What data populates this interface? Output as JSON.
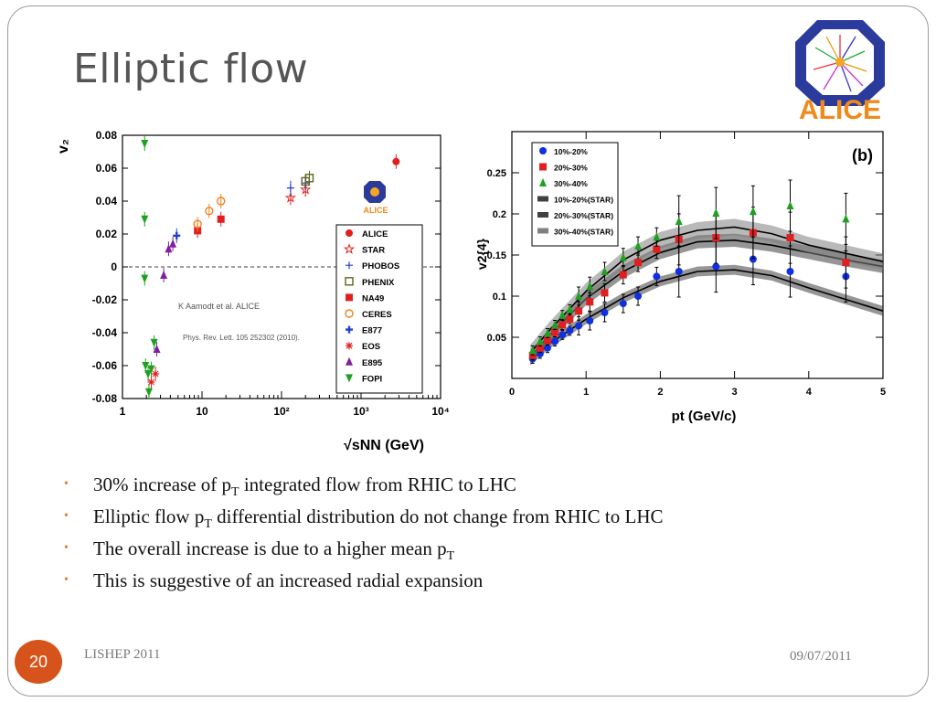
{
  "slide": {
    "title": "Elliptic flow",
    "page_number": "20",
    "footer_left": "LISHEP 2011",
    "footer_right": "09/07/2011",
    "logo_text": "ALICE",
    "bullets": [
      {
        "parts": [
          "30% increase of  p",
          "T",
          " integrated flow from RHIC to LHC"
        ]
      },
      {
        "parts": [
          "Elliptic flow p",
          "T",
          " differential distribution do not change from RHIC to LHC"
        ]
      },
      {
        "parts": [
          "The overall increase is due to  a higher mean p",
          "T",
          ""
        ]
      },
      {
        "parts": [
          "This is suggestive of an increased  radial expansion",
          "",
          ""
        ]
      }
    ],
    "colors": {
      "accent": "#d6541b",
      "bullet": "#e07a2e",
      "title": "#555555"
    }
  },
  "chart_data": [
    {
      "type": "scatter",
      "xscale": "log",
      "xlim": [
        1,
        10000
      ],
      "ylim": [
        -0.08,
        0.08
      ],
      "xticks": [
        "1",
        "10",
        "10²",
        "10³",
        "10⁴"
      ],
      "yticks": [
        "0.08",
        "0.06",
        "0.04",
        "0.02",
        "0",
        "-0.02",
        "-0.04",
        "-0.06",
        "-0.08"
      ],
      "ylabel": "v₂",
      "xlabel": "√sNN (GeV)",
      "legend_position": "right",
      "annotation_1": "K Aamodt et al. ALICE",
      "annotation_2": "Phys. Rev. Lett. 105 252302 (2010).",
      "logo_text": "ALICE",
      "series": [
        {
          "name": "ALICE",
          "color": "#e02020",
          "marker": "circle",
          "points": [
            [
              2760,
              0.064
            ]
          ]
        },
        {
          "name": "STAR",
          "color": "#e02020",
          "marker": "star",
          "points": [
            [
              130,
              0.042
            ],
            [
              200,
              0.047
            ]
          ]
        },
        {
          "name": "PHOBOS",
          "color": "#2040d0",
          "marker": "cross-open",
          "points": [
            [
              130,
              0.048
            ],
            [
              200,
              0.051
            ]
          ]
        },
        {
          "name": "PHENIX",
          "color": "#606020",
          "marker": "square-open",
          "points": [
            [
              200,
              0.052
            ],
            [
              224,
              0.054
            ]
          ]
        },
        {
          "name": "NA49",
          "color": "#e02020",
          "marker": "square",
          "points": [
            [
              8.8,
              0.022
            ],
            [
              17.3,
              0.029
            ]
          ]
        },
        {
          "name": "CERES",
          "color": "#f08020",
          "marker": "circle-open",
          "points": [
            [
              8.8,
              0.026
            ],
            [
              12.3,
              0.034
            ],
            [
              17.3,
              0.04
            ]
          ]
        },
        {
          "name": "E877",
          "color": "#2040d0",
          "marker": "cross",
          "points": [
            [
              4.8,
              0.019
            ]
          ]
        },
        {
          "name": "EOS",
          "color": "#e02020",
          "marker": "asterisk",
          "points": [
            [
              2.3,
              -0.07
            ],
            [
              2.6,
              -0.065
            ]
          ]
        },
        {
          "name": "E895",
          "color": "#8020a0",
          "marker": "triangle",
          "points": [
            [
              3.3,
              -0.005
            ],
            [
              3.8,
              0.011
            ],
            [
              4.3,
              0.014
            ],
            [
              2.7,
              -0.05
            ]
          ]
        },
        {
          "name": "FOPI",
          "color": "#20a020",
          "marker": "triangle-down",
          "points": [
            [
              1.9,
              0.075
            ],
            [
              1.9,
              0.029
            ],
            [
              1.9,
              -0.007
            ],
            [
              1.95,
              -0.06
            ],
            [
              2.1,
              -0.065
            ],
            [
              2.15,
              -0.076
            ],
            [
              2.3,
              -0.062
            ],
            [
              2.5,
              -0.046
            ]
          ]
        }
      ]
    },
    {
      "type": "scatter",
      "xlim": [
        0,
        5
      ],
      "ylim": [
        0,
        0.3
      ],
      "xticks": [
        "0",
        "1",
        "2",
        "3",
        "4",
        "5"
      ],
      "yticks": [
        "0.05",
        "0.1",
        "0.15",
        "0.2",
        "0.25"
      ],
      "ylabel": "v2{4}",
      "xlabel": "pt (GeV/c)",
      "panel_label": "(b)",
      "legend_position": "top-left",
      "series": [
        {
          "name": "10%-20%",
          "color": "#1030e0",
          "marker": "circle",
          "x": [
            0.28,
            0.38,
            0.48,
            0.58,
            0.68,
            0.78,
            0.9,
            1.05,
            1.25,
            1.5,
            1.7,
            1.95,
            2.25,
            2.75,
            3.25,
            3.75,
            4.5
          ],
          "y": [
            0.024,
            0.03,
            0.037,
            0.045,
            0.053,
            0.058,
            0.064,
            0.07,
            0.08,
            0.091,
            0.1,
            0.124,
            0.13,
            0.136,
            0.145,
            0.13,
            0.124
          ]
        },
        {
          "name": "20%-30%",
          "color": "#e02020",
          "marker": "square",
          "x": [
            0.28,
            0.38,
            0.48,
            0.58,
            0.68,
            0.78,
            0.9,
            1.05,
            1.25,
            1.5,
            1.7,
            1.95,
            2.25,
            2.75,
            3.25,
            3.75,
            4.5
          ],
          "y": [
            0.028,
            0.037,
            0.046,
            0.056,
            0.065,
            0.072,
            0.082,
            0.093,
            0.104,
            0.126,
            0.141,
            0.157,
            0.169,
            0.171,
            0.177,
            0.171,
            0.141
          ]
        },
        {
          "name": "30%-40%",
          "color": "#20a020",
          "marker": "triangle",
          "x": [
            0.28,
            0.38,
            0.48,
            0.58,
            0.68,
            0.78,
            0.9,
            1.05,
            1.25,
            1.5,
            1.7,
            1.95,
            2.25,
            2.75,
            3.25,
            3.75,
            4.5
          ],
          "y": [
            0.034,
            0.045,
            0.055,
            0.065,
            0.077,
            0.084,
            0.1,
            0.112,
            0.13,
            0.147,
            0.161,
            0.172,
            0.191,
            0.201,
            0.203,
            0.21,
            0.194
          ]
        },
        {
          "name": "10%-20%(STAR)",
          "color": "#404040",
          "marker": "band",
          "x": [
            0.25,
            0.5,
            1.0,
            1.5,
            2.0,
            2.5,
            3.0,
            3.5,
            4.0,
            4.5,
            5.0
          ],
          "y": [
            0.022,
            0.042,
            0.072,
            0.098,
            0.118,
            0.13,
            0.132,
            0.125,
            0.11,
            0.096,
            0.082
          ]
        },
        {
          "name": "20%-30%(STAR)",
          "color": "#404040",
          "marker": "band",
          "x": [
            0.25,
            0.5,
            1.0,
            1.5,
            2.0,
            2.5,
            3.0,
            3.5,
            4.0,
            4.5,
            5.0
          ],
          "y": [
            0.026,
            0.052,
            0.097,
            0.13,
            0.153,
            0.166,
            0.168,
            0.162,
            0.153,
            0.144,
            0.136
          ]
        },
        {
          "name": "30%-40%(STAR)",
          "color": "#808080",
          "marker": "band",
          "x": [
            0.25,
            0.5,
            1.0,
            1.5,
            2.0,
            2.5,
            3.0,
            3.5,
            4.0,
            4.5,
            5.0
          ],
          "y": [
            0.031,
            0.058,
            0.106,
            0.144,
            0.168,
            0.18,
            0.184,
            0.176,
            0.162,
            0.152,
            0.142
          ]
        }
      ]
    }
  ]
}
